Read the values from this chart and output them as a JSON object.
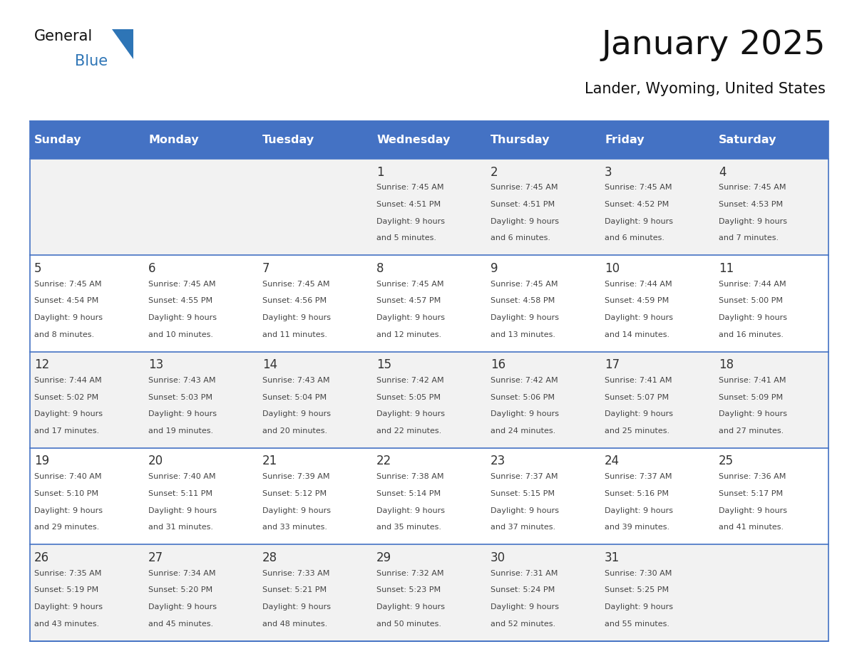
{
  "title": "January 2025",
  "subtitle": "Lander, Wyoming, United States",
  "days_of_week": [
    "Sunday",
    "Monday",
    "Tuesday",
    "Wednesday",
    "Thursday",
    "Friday",
    "Saturday"
  ],
  "header_bg_color": "#4472C4",
  "header_text_color": "#FFFFFF",
  "cell_bg_row0": "#F2F2F2",
  "cell_bg_row1": "#FFFFFF",
  "cell_border_color": "#4472C4",
  "day_number_color": "#333333",
  "cell_text_color": "#444444",
  "title_color": "#111111",
  "subtitle_color": "#111111",
  "logo_general_color": "#111111",
  "logo_blue_color": "#2E75B6",
  "weeks": [
    [
      {
        "day": null,
        "sunrise": null,
        "sunset": null,
        "daylight_hours": null,
        "daylight_minutes": null
      },
      {
        "day": null,
        "sunrise": null,
        "sunset": null,
        "daylight_hours": null,
        "daylight_minutes": null
      },
      {
        "day": null,
        "sunrise": null,
        "sunset": null,
        "daylight_hours": null,
        "daylight_minutes": null
      },
      {
        "day": 1,
        "sunrise": "7:45 AM",
        "sunset": "4:51 PM",
        "daylight_hours": 9,
        "daylight_minutes": 5
      },
      {
        "day": 2,
        "sunrise": "7:45 AM",
        "sunset": "4:51 PM",
        "daylight_hours": 9,
        "daylight_minutes": 6
      },
      {
        "day": 3,
        "sunrise": "7:45 AM",
        "sunset": "4:52 PM",
        "daylight_hours": 9,
        "daylight_minutes": 6
      },
      {
        "day": 4,
        "sunrise": "7:45 AM",
        "sunset": "4:53 PM",
        "daylight_hours": 9,
        "daylight_minutes": 7
      }
    ],
    [
      {
        "day": 5,
        "sunrise": "7:45 AM",
        "sunset": "4:54 PM",
        "daylight_hours": 9,
        "daylight_minutes": 8
      },
      {
        "day": 6,
        "sunrise": "7:45 AM",
        "sunset": "4:55 PM",
        "daylight_hours": 9,
        "daylight_minutes": 10
      },
      {
        "day": 7,
        "sunrise": "7:45 AM",
        "sunset": "4:56 PM",
        "daylight_hours": 9,
        "daylight_minutes": 11
      },
      {
        "day": 8,
        "sunrise": "7:45 AM",
        "sunset": "4:57 PM",
        "daylight_hours": 9,
        "daylight_minutes": 12
      },
      {
        "day": 9,
        "sunrise": "7:45 AM",
        "sunset": "4:58 PM",
        "daylight_hours": 9,
        "daylight_minutes": 13
      },
      {
        "day": 10,
        "sunrise": "7:44 AM",
        "sunset": "4:59 PM",
        "daylight_hours": 9,
        "daylight_minutes": 14
      },
      {
        "day": 11,
        "sunrise": "7:44 AM",
        "sunset": "5:00 PM",
        "daylight_hours": 9,
        "daylight_minutes": 16
      }
    ],
    [
      {
        "day": 12,
        "sunrise": "7:44 AM",
        "sunset": "5:02 PM",
        "daylight_hours": 9,
        "daylight_minutes": 17
      },
      {
        "day": 13,
        "sunrise": "7:43 AM",
        "sunset": "5:03 PM",
        "daylight_hours": 9,
        "daylight_minutes": 19
      },
      {
        "day": 14,
        "sunrise": "7:43 AM",
        "sunset": "5:04 PM",
        "daylight_hours": 9,
        "daylight_minutes": 20
      },
      {
        "day": 15,
        "sunrise": "7:42 AM",
        "sunset": "5:05 PM",
        "daylight_hours": 9,
        "daylight_minutes": 22
      },
      {
        "day": 16,
        "sunrise": "7:42 AM",
        "sunset": "5:06 PM",
        "daylight_hours": 9,
        "daylight_minutes": 24
      },
      {
        "day": 17,
        "sunrise": "7:41 AM",
        "sunset": "5:07 PM",
        "daylight_hours": 9,
        "daylight_minutes": 25
      },
      {
        "day": 18,
        "sunrise": "7:41 AM",
        "sunset": "5:09 PM",
        "daylight_hours": 9,
        "daylight_minutes": 27
      }
    ],
    [
      {
        "day": 19,
        "sunrise": "7:40 AM",
        "sunset": "5:10 PM",
        "daylight_hours": 9,
        "daylight_minutes": 29
      },
      {
        "day": 20,
        "sunrise": "7:40 AM",
        "sunset": "5:11 PM",
        "daylight_hours": 9,
        "daylight_minutes": 31
      },
      {
        "day": 21,
        "sunrise": "7:39 AM",
        "sunset": "5:12 PM",
        "daylight_hours": 9,
        "daylight_minutes": 33
      },
      {
        "day": 22,
        "sunrise": "7:38 AM",
        "sunset": "5:14 PM",
        "daylight_hours": 9,
        "daylight_minutes": 35
      },
      {
        "day": 23,
        "sunrise": "7:37 AM",
        "sunset": "5:15 PM",
        "daylight_hours": 9,
        "daylight_minutes": 37
      },
      {
        "day": 24,
        "sunrise": "7:37 AM",
        "sunset": "5:16 PM",
        "daylight_hours": 9,
        "daylight_minutes": 39
      },
      {
        "day": 25,
        "sunrise": "7:36 AM",
        "sunset": "5:17 PM",
        "daylight_hours": 9,
        "daylight_minutes": 41
      }
    ],
    [
      {
        "day": 26,
        "sunrise": "7:35 AM",
        "sunset": "5:19 PM",
        "daylight_hours": 9,
        "daylight_minutes": 43
      },
      {
        "day": 27,
        "sunrise": "7:34 AM",
        "sunset": "5:20 PM",
        "daylight_hours": 9,
        "daylight_minutes": 45
      },
      {
        "day": 28,
        "sunrise": "7:33 AM",
        "sunset": "5:21 PM",
        "daylight_hours": 9,
        "daylight_minutes": 48
      },
      {
        "day": 29,
        "sunrise": "7:32 AM",
        "sunset": "5:23 PM",
        "daylight_hours": 9,
        "daylight_minutes": 50
      },
      {
        "day": 30,
        "sunrise": "7:31 AM",
        "sunset": "5:24 PM",
        "daylight_hours": 9,
        "daylight_minutes": 52
      },
      {
        "day": 31,
        "sunrise": "7:30 AM",
        "sunset": "5:25 PM",
        "daylight_hours": 9,
        "daylight_minutes": 55
      },
      {
        "day": null,
        "sunrise": null,
        "sunset": null,
        "daylight_hours": null,
        "daylight_minutes": null
      }
    ]
  ]
}
